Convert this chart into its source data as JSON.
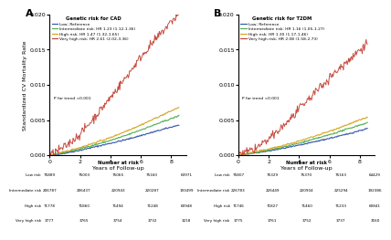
{
  "panel_A": {
    "title": "Genetic risk for CAD",
    "legend_lines": [
      "Low; Reference",
      "Intermediate risk; HR 1.23 (1.12-1.36)",
      "High risk; HR 1.47 (1.32-1.65)",
      "Very high risk; HR 2.61 (2.02-3.36)"
    ],
    "ptrend": "P for trend <0.001",
    "colors": [
      "#2b4fa8",
      "#4aa84a",
      "#d4a017",
      "#c0392b"
    ],
    "risk_table": {
      "labels": [
        "Low risk",
        "Intermediate risk",
        "High risk",
        "Very high risk"
      ],
      "x_ticks": [
        0,
        2,
        4,
        6,
        8
      ],
      "values": [
        [
          75889,
          75003,
          75065,
          75160,
          63971
        ],
        [
          206787,
          206437,
          220943,
          220287,
          193499
        ],
        [
          71778,
          71860,
          71494,
          71248,
          60948
        ],
        [
          3777,
          3765,
          3754,
          3732,
          3218
        ]
      ]
    }
  },
  "panel_B": {
    "title": "Genetic risk for T2DM",
    "legend_lines": [
      "Low; Reference",
      "Intermediate risk; HR 1.16 (1.05-1.27)",
      "High risk; HR 1.30 (1.17-1.46)",
      "Very high risk; HR 2.08 (1.58-2.73)"
    ],
    "ptrend": "P for trend <0.001",
    "colors": [
      "#2b4fa8",
      "#4aa84a",
      "#d4a017",
      "#c0392b"
    ],
    "risk_table": {
      "labels": [
        "Low risk",
        "Intermediate risk",
        "High risk",
        "Very high risk"
      ],
      "x_ticks": [
        0,
        2,
        4,
        6,
        8
      ],
      "values": [
        [
          75807,
          75329,
          75370,
          75163,
          64429
        ],
        [
          226783,
          226449,
          220904,
          225294,
          192386
        ],
        [
          71746,
          71827,
          71460,
          71233,
          60841
        ],
        [
          3775,
          3761,
          3752,
          3737,
          3160
        ]
      ]
    }
  },
  "ylim": [
    0,
    0.02
  ],
  "yticks": [
    0.0,
    0.005,
    0.01,
    0.015,
    0.02
  ],
  "xlim": [
    0,
    9
  ],
  "xticks": [
    0,
    2,
    4,
    6,
    8
  ],
  "xlabel": "Years of Follow-up",
  "ylabel": "Standardized CV Mortality Rate",
  "background_color": "#ffffff",
  "curves_A": {
    "x": [
      0,
      1,
      2,
      3,
      4,
      5,
      6,
      7,
      8,
      8.5
    ],
    "low": [
      0,
      0.0003,
      0.0007,
      0.0012,
      0.0017,
      0.0022,
      0.0028,
      0.0034,
      0.004,
      0.0043
    ],
    "inter": [
      0,
      0.0004,
      0.0009,
      0.0015,
      0.0021,
      0.0028,
      0.0036,
      0.0044,
      0.0052,
      0.0056
    ],
    "high": [
      0,
      0.0005,
      0.0011,
      0.0018,
      0.0025,
      0.0034,
      0.0043,
      0.0053,
      0.0063,
      0.0068
    ],
    "very_high": [
      0,
      0.0012,
      0.003,
      0.0055,
      0.0082,
      0.011,
      0.014,
      0.0165,
      0.019,
      0.02
    ]
  },
  "curves_B": {
    "x": [
      0,
      1,
      2,
      3,
      4,
      5,
      6,
      7,
      8,
      8.5
    ],
    "low": [
      0,
      0.0003,
      0.0006,
      0.001,
      0.0014,
      0.0019,
      0.0024,
      0.0029,
      0.0035,
      0.0038
    ],
    "inter": [
      0,
      0.0003,
      0.0007,
      0.0012,
      0.0017,
      0.0023,
      0.0029,
      0.0036,
      0.0043,
      0.0046
    ],
    "high": [
      0,
      0.0004,
      0.0009,
      0.0014,
      0.002,
      0.0027,
      0.0034,
      0.0042,
      0.005,
      0.0054
    ],
    "very_high": [
      0,
      0.0008,
      0.0022,
      0.0042,
      0.0065,
      0.0088,
      0.011,
      0.013,
      0.015,
      0.016
    ]
  }
}
